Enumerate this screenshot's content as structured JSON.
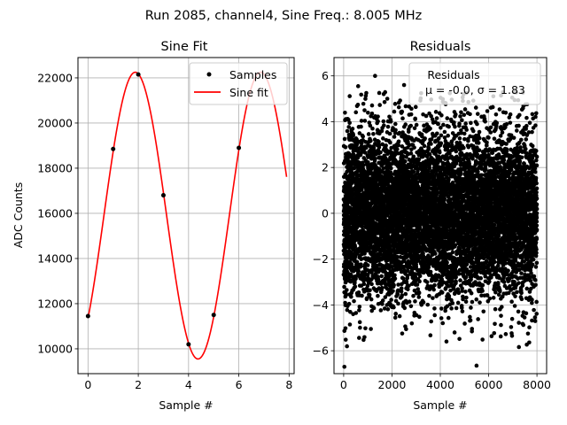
{
  "figure": {
    "suptitle": "Run 2085, channel4, Sine Freq.: 8.005 MHz"
  },
  "chart_data": [
    {
      "type": "line",
      "title": "Sine Fit",
      "xlabel": "Sample #",
      "ylabel": "ADC Counts",
      "xlim": [
        -0.4,
        8.2
      ],
      "ylim": [
        8900,
        22900
      ],
      "xticks": [
        0,
        2,
        4,
        6,
        8
      ],
      "yticks": [
        10000,
        12000,
        14000,
        16000,
        18000,
        20000,
        22000
      ],
      "grid": true,
      "legend_position": "upper right",
      "series": [
        {
          "name": "Samples",
          "style": "points",
          "color": "#000000",
          "x": [
            0,
            1,
            2,
            3,
            4,
            5,
            6
          ],
          "y": [
            11450,
            18850,
            22150,
            16800,
            10200,
            11500,
            18900
          ]
        },
        {
          "name": "Sine fit",
          "style": "line",
          "color": "#ff0000",
          "function": {
            "offset": 15900,
            "amplitude": 6350,
            "period": 4.99,
            "peak_at": 1.88,
            "x_start": 0,
            "x_end": 7.9
          }
        }
      ]
    },
    {
      "type": "scatter",
      "title": "Residuals",
      "xlabel": "Sample #",
      "xlim": [
        -400,
        8400
      ],
      "ylim": [
        -7.0,
        6.8
      ],
      "xticks": [
        0,
        2000,
        4000,
        6000,
        8000
      ],
      "yticks": [
        -6,
        -4,
        -2,
        0,
        2,
        4,
        6
      ],
      "grid": true,
      "legend_position": "upper right",
      "legend_title": "Residuals",
      "legend_stats": "μ = -0.0, σ = 1.83",
      "series": [
        {
          "name": "Residuals",
          "color": "#000000",
          "n_points": 8000,
          "x_range": [
            0,
            8000
          ],
          "mean": 0.0,
          "std": 1.83,
          "notable_points": [
            {
              "x": 30,
              "y": -6.7
            },
            {
              "x": 5500,
              "y": -6.65
            },
            {
              "x": 1300,
              "y": 6.0
            },
            {
              "x": 2500,
              "y": 5.6
            },
            {
              "x": 600,
              "y": 5.55
            },
            {
              "x": 900,
              "y": 5.0
            }
          ]
        }
      ]
    }
  ]
}
